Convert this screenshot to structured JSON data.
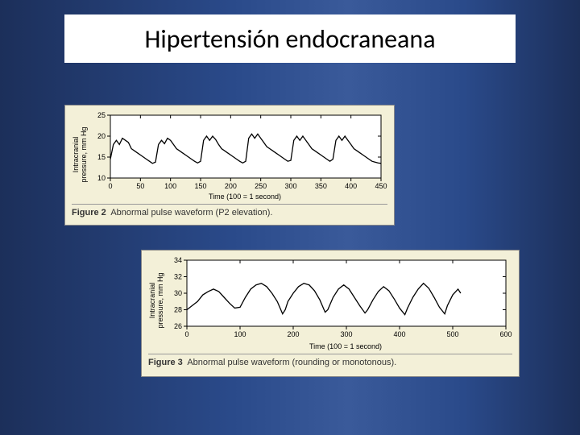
{
  "slide": {
    "title": "Hipertensión endocraneana",
    "background_gradient": [
      "#1c2f5a",
      "#2a4a8a",
      "#3a5a9a",
      "#2a4a8a",
      "#1c2f5a"
    ]
  },
  "figure2": {
    "type": "line",
    "caption_label": "Figure 2",
    "caption_text": "Abnormal pulse waveform (P2 elevation).",
    "xlabel": "Time (100 = 1 second)",
    "ylabel_line1": "Intracranial",
    "ylabel_line2": "pressure, mm Hg",
    "xlim": [
      0,
      450
    ],
    "xtick_step": 50,
    "xticks": [
      0,
      50,
      100,
      150,
      200,
      250,
      300,
      350,
      400,
      450
    ],
    "ylim": [
      10,
      25
    ],
    "ytick_step": 5,
    "yticks": [
      10,
      15,
      20,
      25
    ],
    "background_color": "#f3f0d8",
    "plot_bg": "#ffffff",
    "axis_color": "#000000",
    "line_color": "#000000",
    "line_width": 1.3,
    "tick_fontsize": 9,
    "label_fontsize": 9,
    "caption_fontsize": 11,
    "data": [
      [
        0,
        14.5
      ],
      [
        5,
        18
      ],
      [
        10,
        19
      ],
      [
        15,
        18
      ],
      [
        20,
        19.5
      ],
      [
        25,
        19
      ],
      [
        30,
        18.5
      ],
      [
        35,
        17
      ],
      [
        40,
        16.5
      ],
      [
        45,
        16
      ],
      [
        50,
        15.5
      ],
      [
        55,
        15
      ],
      [
        60,
        14.5
      ],
      [
        65,
        14
      ],
      [
        70,
        13.5
      ],
      [
        75,
        13.8
      ],
      [
        80,
        18
      ],
      [
        85,
        19
      ],
      [
        90,
        18.2
      ],
      [
        95,
        19.5
      ],
      [
        100,
        19
      ],
      [
        105,
        18
      ],
      [
        110,
        17
      ],
      [
        115,
        16.5
      ],
      [
        120,
        16
      ],
      [
        125,
        15.5
      ],
      [
        130,
        15
      ],
      [
        135,
        14.5
      ],
      [
        140,
        14
      ],
      [
        145,
        13.6
      ],
      [
        150,
        14
      ],
      [
        155,
        19
      ],
      [
        160,
        20
      ],
      [
        165,
        19
      ],
      [
        170,
        20
      ],
      [
        175,
        19.2
      ],
      [
        180,
        18
      ],
      [
        185,
        17
      ],
      [
        190,
        16.5
      ],
      [
        195,
        16
      ],
      [
        200,
        15.5
      ],
      [
        205,
        15
      ],
      [
        210,
        14.5
      ],
      [
        215,
        14
      ],
      [
        220,
        13.6
      ],
      [
        225,
        14
      ],
      [
        230,
        19.5
      ],
      [
        235,
        20.5
      ],
      [
        240,
        19.5
      ],
      [
        245,
        20.5
      ],
      [
        250,
        19.5
      ],
      [
        255,
        18.5
      ],
      [
        260,
        17.5
      ],
      [
        265,
        17
      ],
      [
        270,
        16.5
      ],
      [
        275,
        16
      ],
      [
        280,
        15.5
      ],
      [
        285,
        15
      ],
      [
        290,
        14.5
      ],
      [
        295,
        14
      ],
      [
        300,
        14.2
      ],
      [
        305,
        19
      ],
      [
        310,
        20
      ],
      [
        315,
        19
      ],
      [
        320,
        20
      ],
      [
        325,
        19
      ],
      [
        330,
        18
      ],
      [
        335,
        17
      ],
      [
        340,
        16.5
      ],
      [
        345,
        16
      ],
      [
        350,
        15.5
      ],
      [
        355,
        15
      ],
      [
        360,
        14.5
      ],
      [
        365,
        14
      ],
      [
        370,
        14.5
      ],
      [
        375,
        19
      ],
      [
        380,
        20
      ],
      [
        385,
        19
      ],
      [
        390,
        20
      ],
      [
        395,
        19
      ],
      [
        400,
        18
      ],
      [
        405,
        17
      ],
      [
        410,
        16.5
      ],
      [
        415,
        16
      ],
      [
        420,
        15.5
      ],
      [
        425,
        15
      ],
      [
        430,
        14.5
      ],
      [
        435,
        14
      ],
      [
        440,
        13.8
      ],
      [
        445,
        13.6
      ],
      [
        450,
        13.5
      ]
    ]
  },
  "figure3": {
    "type": "line",
    "caption_label": "Figure 3",
    "caption_text": "Abnormal pulse waveform (rounding or monotonous).",
    "xlabel": "Time (100 = 1 second)",
    "ylabel_line1": "Intracranial",
    "ylabel_line2": "pressure, mm Hg",
    "xlim": [
      0,
      600
    ],
    "xtick_step": 100,
    "xticks": [
      0,
      100,
      200,
      300,
      400,
      500,
      600
    ],
    "ylim": [
      26,
      34
    ],
    "ytick_step": 2,
    "yticks": [
      26,
      28,
      30,
      32,
      34
    ],
    "background_color": "#f3f0d8",
    "plot_bg": "#ffffff",
    "axis_color": "#000000",
    "line_color": "#000000",
    "line_width": 1.3,
    "tick_fontsize": 9,
    "label_fontsize": 9,
    "caption_fontsize": 11,
    "data": [
      [
        0,
        28
      ],
      [
        10,
        28.5
      ],
      [
        20,
        29
      ],
      [
        30,
        29.8
      ],
      [
        40,
        30.2
      ],
      [
        50,
        30.5
      ],
      [
        60,
        30.2
      ],
      [
        70,
        29.5
      ],
      [
        80,
        28.8
      ],
      [
        90,
        28.2
      ],
      [
        100,
        28.3
      ],
      [
        110,
        29.5
      ],
      [
        120,
        30.5
      ],
      [
        130,
        31
      ],
      [
        140,
        31.2
      ],
      [
        150,
        30.8
      ],
      [
        160,
        30
      ],
      [
        170,
        29
      ],
      [
        180,
        27.5
      ],
      [
        185,
        28
      ],
      [
        190,
        29
      ],
      [
        200,
        30
      ],
      [
        210,
        30.8
      ],
      [
        220,
        31.2
      ],
      [
        230,
        31
      ],
      [
        240,
        30.3
      ],
      [
        250,
        29.2
      ],
      [
        260,
        27.7
      ],
      [
        265,
        28
      ],
      [
        275,
        29.5
      ],
      [
        285,
        30.5
      ],
      [
        295,
        31
      ],
      [
        305,
        30.5
      ],
      [
        315,
        29.5
      ],
      [
        325,
        28.5
      ],
      [
        335,
        27.6
      ],
      [
        340,
        28
      ],
      [
        350,
        29.2
      ],
      [
        360,
        30.2
      ],
      [
        370,
        30.8
      ],
      [
        380,
        30.3
      ],
      [
        390,
        29.3
      ],
      [
        400,
        28.2
      ],
      [
        410,
        27.4
      ],
      [
        415,
        28.2
      ],
      [
        425,
        29.5
      ],
      [
        435,
        30.5
      ],
      [
        445,
        31.2
      ],
      [
        455,
        30.6
      ],
      [
        465,
        29.5
      ],
      [
        475,
        28.3
      ],
      [
        485,
        27.5
      ],
      [
        490,
        28.5
      ],
      [
        500,
        29.8
      ],
      [
        510,
        30.5
      ],
      [
        515,
        30
      ]
    ]
  }
}
